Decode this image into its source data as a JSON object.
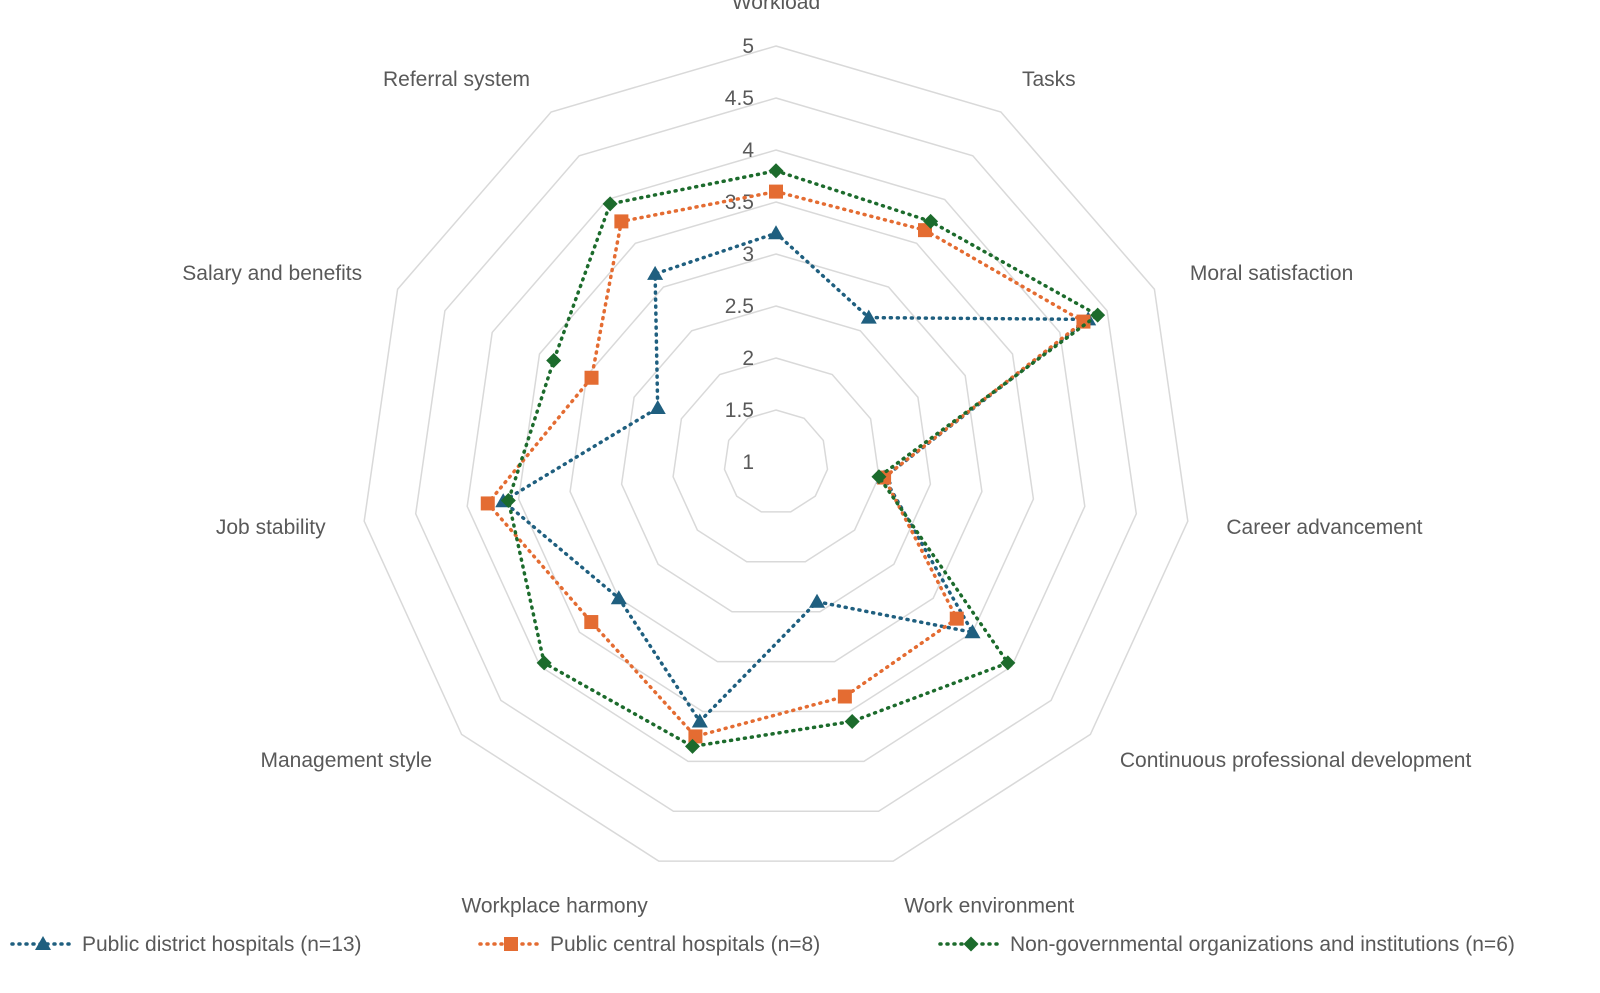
{
  "chart_data": {
    "type": "radar",
    "title": "",
    "categories": [
      "Workload",
      "Tasks",
      "Moral satisfaction",
      "Career advancement",
      "Continuous professional development",
      "Work environment",
      "Workplace harmony",
      "Management style",
      "Job stability",
      "Salary and benefits",
      "Referral system"
    ],
    "ticks": [
      "1",
      "1.5",
      "2",
      "2.5",
      "3",
      "3.5",
      "4",
      "4.5",
      "5"
    ],
    "rlim": [
      1,
      5
    ],
    "grid": true,
    "legend_position": "bottom",
    "series": [
      {
        "name": "Public district hospitals (n=13)",
        "color": "#1F5F7F",
        "marker": "triangle",
        "values": [
          3.2,
          2.65,
          4.3,
          2.05,
          3.5,
          2.4,
          3.6,
          3.0,
          3.65,
          2.25,
          3.15
        ]
      },
      {
        "name": "Public central hospitals (n=8)",
        "color": "#E46C32",
        "marker": "square",
        "values": [
          3.6,
          3.65,
          4.25,
          2.05,
          3.3,
          3.35,
          3.75,
          3.35,
          3.8,
          2.95,
          3.75
        ]
      },
      {
        "name": "Non-governmental organizations and institutions (n=6)",
        "color": "#1C6B2C",
        "marker": "diamond",
        "values": [
          3.8,
          3.75,
          4.4,
          2.0,
          3.95,
          3.6,
          3.85,
          3.95,
          3.6,
          3.35,
          3.95
        ]
      }
    ]
  }
}
